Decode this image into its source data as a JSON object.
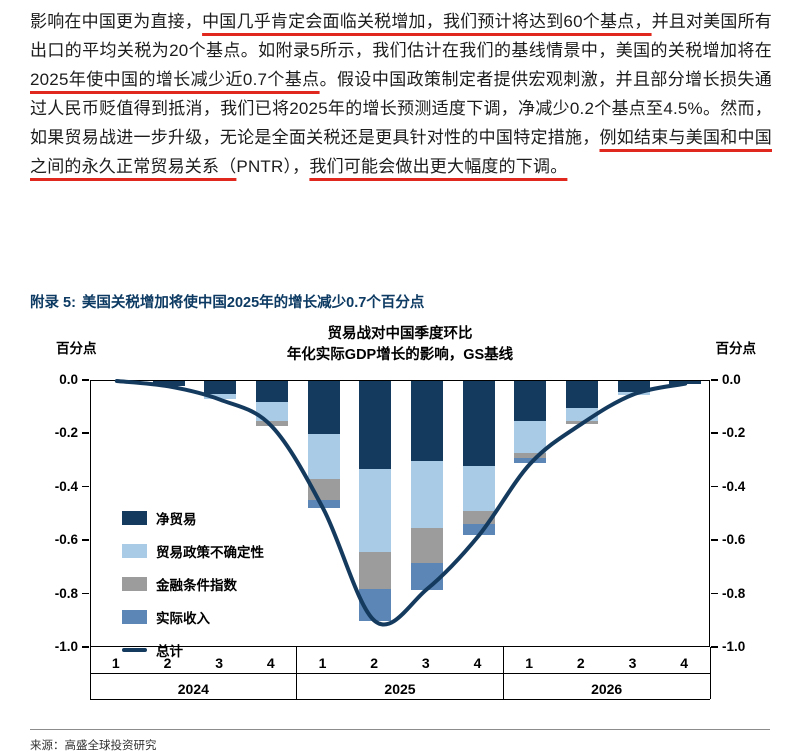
{
  "paragraph": {
    "underline_color": "#e0281e",
    "segments": [
      {
        "text": "影响在中国更为直接，",
        "underline": false
      },
      {
        "text": "中国几乎肯定会面临关税增加，我们预计将达到60个基点，",
        "underline": true
      },
      {
        "text": "并且对美国所有出口的平均关税为20个基点。如附录5所示，我们估计在我们的基线情景中，美国的关税增加将在",
        "underline": false
      },
      {
        "text": "2025年使中国的增长减少近0.7个基点",
        "underline": true
      },
      {
        "text": "。假设中国政策制定者提供宏观刺激，并且部分增长损失通过人民币贬值得到抵消，我们已将2025年的增长预测适度下调，净减少0.2个基点至4.5%。然而，如果贸易战进一步升级，无论是全面关税还是更具针对性的中国特定措施，",
        "underline": false
      },
      {
        "text": "例如结束与美国和中国之间的永久正常贸易关系（",
        "underline": true
      },
      {
        "text": "PNTR），",
        "underline": false
      },
      {
        "text": "我们可能会做出更大幅度的下调。",
        "underline": true
      }
    ]
  },
  "exhibit": {
    "label": "附录 5:",
    "title": "美国关税增加将使中国2025年的增长减少0.7个百分点",
    "title_color": "#0c3a62"
  },
  "chart_data": {
    "type": "bar",
    "stacked": true,
    "title_lines": [
      "贸易战对中国季度环比",
      "年化实际GDP增长的影响，GS基线"
    ],
    "left_axis_label": "百分点",
    "right_axis_label": "百分点",
    "ylim": [
      -1.0,
      0.0
    ],
    "yticks": [
      "0.0",
      "-0.2",
      "-0.4",
      "-0.6",
      "-0.8",
      "-1.0"
    ],
    "grid": false,
    "legend_position": "inside-left",
    "quarters": [
      "1",
      "2",
      "3",
      "4",
      "1",
      "2",
      "3",
      "4",
      "1",
      "2",
      "3",
      "4"
    ],
    "years": [
      {
        "label": "2024",
        "span": 4
      },
      {
        "label": "2025",
        "span": 4
      },
      {
        "label": "2026",
        "span": 4
      }
    ],
    "series": [
      {
        "name": "净贸易",
        "color": "#143a5e",
        "values": [
          0,
          -0.02,
          -0.05,
          -0.08,
          -0.2,
          -0.33,
          -0.3,
          -0.32,
          -0.15,
          -0.1,
          -0.04,
          -0.01
        ]
      },
      {
        "name": "贸易政策不确定性",
        "color": "#a9cbe6",
        "values": [
          0,
          0,
          -0.02,
          -0.07,
          -0.17,
          -0.31,
          -0.25,
          -0.17,
          -0.12,
          -0.05,
          -0.01,
          0
        ]
      },
      {
        "name": "金融条件指数",
        "color": "#9c9c9c",
        "values": [
          0,
          0,
          0,
          -0.02,
          -0.08,
          -0.14,
          -0.13,
          -0.05,
          -0.02,
          -0.01,
          0,
          0
        ]
      },
      {
        "name": "实际收入",
        "color": "#5c86b5",
        "values": [
          0,
          0,
          0,
          0,
          -0.03,
          -0.12,
          -0.1,
          -0.04,
          -0.02,
          0,
          0,
          0
        ]
      }
    ],
    "line_series": {
      "name": "总计",
      "color": "#143a5e",
      "values": [
        0,
        -0.02,
        -0.07,
        -0.17,
        -0.48,
        -0.9,
        -0.78,
        -0.58,
        -0.31,
        -0.16,
        -0.05,
        -0.01
      ]
    }
  },
  "source": {
    "text": "来源：高盛全球投资研究"
  }
}
